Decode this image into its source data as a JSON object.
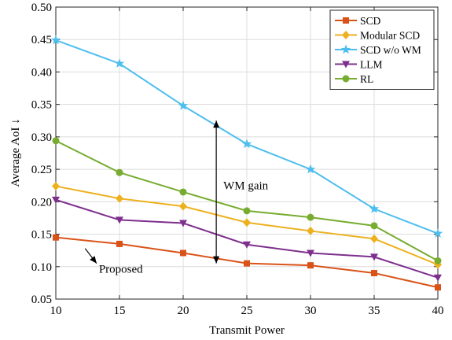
{
  "chart_data": {
    "type": "line",
    "x": [
      10,
      15,
      20,
      25,
      30,
      35,
      40
    ],
    "xlabel": "Transmit Power",
    "ylabel": "Average AoI ↓",
    "xlim": [
      10,
      40
    ],
    "ylim": [
      0.05,
      0.5
    ],
    "xticks": [
      "10",
      "15",
      "20",
      "25",
      "30",
      "35",
      "40"
    ],
    "yticks": [
      "0.05",
      "0.10",
      "0.15",
      "0.20",
      "0.25",
      "0.30",
      "0.35",
      "0.40",
      "0.45",
      "0.50"
    ],
    "grid": true,
    "legend_position": "top-right",
    "series": [
      {
        "name": "SCD",
        "color": "#d95319",
        "marker": "square",
        "values": [
          0.145,
          0.135,
          0.121,
          0.105,
          0.102,
          0.09,
          0.068
        ]
      },
      {
        "name": "Modular SCD",
        "color": "#edb120",
        "marker": "diamond",
        "values": [
          0.224,
          0.205,
          0.193,
          0.168,
          0.155,
          0.143,
          0.103
        ]
      },
      {
        "name": "SCD w/o WM",
        "color": "#4dbeee",
        "marker": "star",
        "values": [
          0.449,
          0.413,
          0.348,
          0.289,
          0.25,
          0.189,
          0.151
        ]
      },
      {
        "name": "LLM",
        "color": "#7e2f8e",
        "marker": "triangle-down",
        "values": [
          0.203,
          0.172,
          0.167,
          0.134,
          0.121,
          0.115,
          0.083
        ]
      },
      {
        "name": "RL",
        "color": "#77ac30",
        "marker": "circle",
        "values": [
          0.294,
          0.245,
          0.215,
          0.186,
          0.176,
          0.163,
          0.109
        ]
      }
    ],
    "annotations": [
      {
        "text": "WM gain",
        "x": 22.6,
        "y_from": 0.105,
        "y_to": 0.325
      },
      {
        "text": "Proposed",
        "arrow_from_x": 13.2,
        "arrow_from_y": 0.105,
        "arrow_to_x": 12.3,
        "arrow_to_y": 0.128
      }
    ]
  }
}
